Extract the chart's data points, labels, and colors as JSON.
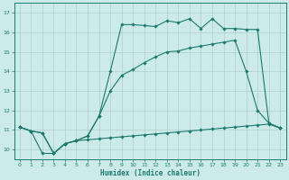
{
  "title": "",
  "xlabel": "Humidex (Indice chaleur)",
  "bg_color": "#cceae7",
  "line_color": "#1a7a6e",
  "grid_color": "#b0cfcc",
  "xlim": [
    -0.5,
    23.5
  ],
  "ylim": [
    9.5,
    17.5
  ],
  "xticks": [
    0,
    1,
    2,
    3,
    4,
    5,
    6,
    7,
    8,
    9,
    10,
    11,
    12,
    13,
    14,
    15,
    16,
    17,
    18,
    19,
    20,
    21,
    22,
    23
  ],
  "yticks": [
    10,
    11,
    12,
    13,
    14,
    15,
    16,
    17
  ],
  "curve1_x": [
    0,
    1,
    2,
    3,
    4,
    5,
    6,
    7,
    8,
    9,
    10,
    11,
    12,
    13,
    14,
    15,
    16,
    17,
    18,
    19,
    20,
    21,
    22,
    23
  ],
  "curve1_y": [
    11.15,
    10.95,
    9.8,
    9.8,
    10.3,
    10.45,
    10.5,
    10.55,
    10.6,
    10.65,
    10.7,
    10.75,
    10.8,
    10.85,
    10.9,
    10.95,
    11.0,
    11.05,
    11.1,
    11.15,
    11.2,
    11.25,
    11.3,
    11.1
  ],
  "curve2_x": [
    0,
    1,
    2,
    3,
    4,
    5,
    6,
    7,
    8,
    9,
    10,
    11,
    12,
    13,
    14,
    15,
    16,
    17,
    18,
    19,
    20,
    21,
    22,
    23
  ],
  "curve2_y": [
    11.15,
    10.95,
    10.85,
    9.8,
    10.3,
    10.45,
    10.7,
    11.7,
    13.0,
    13.8,
    14.1,
    14.45,
    14.75,
    15.0,
    15.05,
    15.2,
    15.3,
    15.4,
    15.5,
    15.6,
    14.0,
    12.0,
    11.35,
    11.1
  ],
  "curve3_x": [
    0,
    1,
    2,
    3,
    4,
    5,
    6,
    7,
    8,
    9,
    10,
    11,
    12,
    13,
    14,
    15,
    16,
    17,
    18,
    19,
    20,
    21,
    22,
    23
  ],
  "curve3_y": [
    11.15,
    10.95,
    10.85,
    9.8,
    10.3,
    10.45,
    10.7,
    11.7,
    14.0,
    16.4,
    16.4,
    16.35,
    16.3,
    16.6,
    16.5,
    16.7,
    16.2,
    16.7,
    16.2,
    16.2,
    16.15,
    16.15,
    11.35,
    11.1
  ]
}
